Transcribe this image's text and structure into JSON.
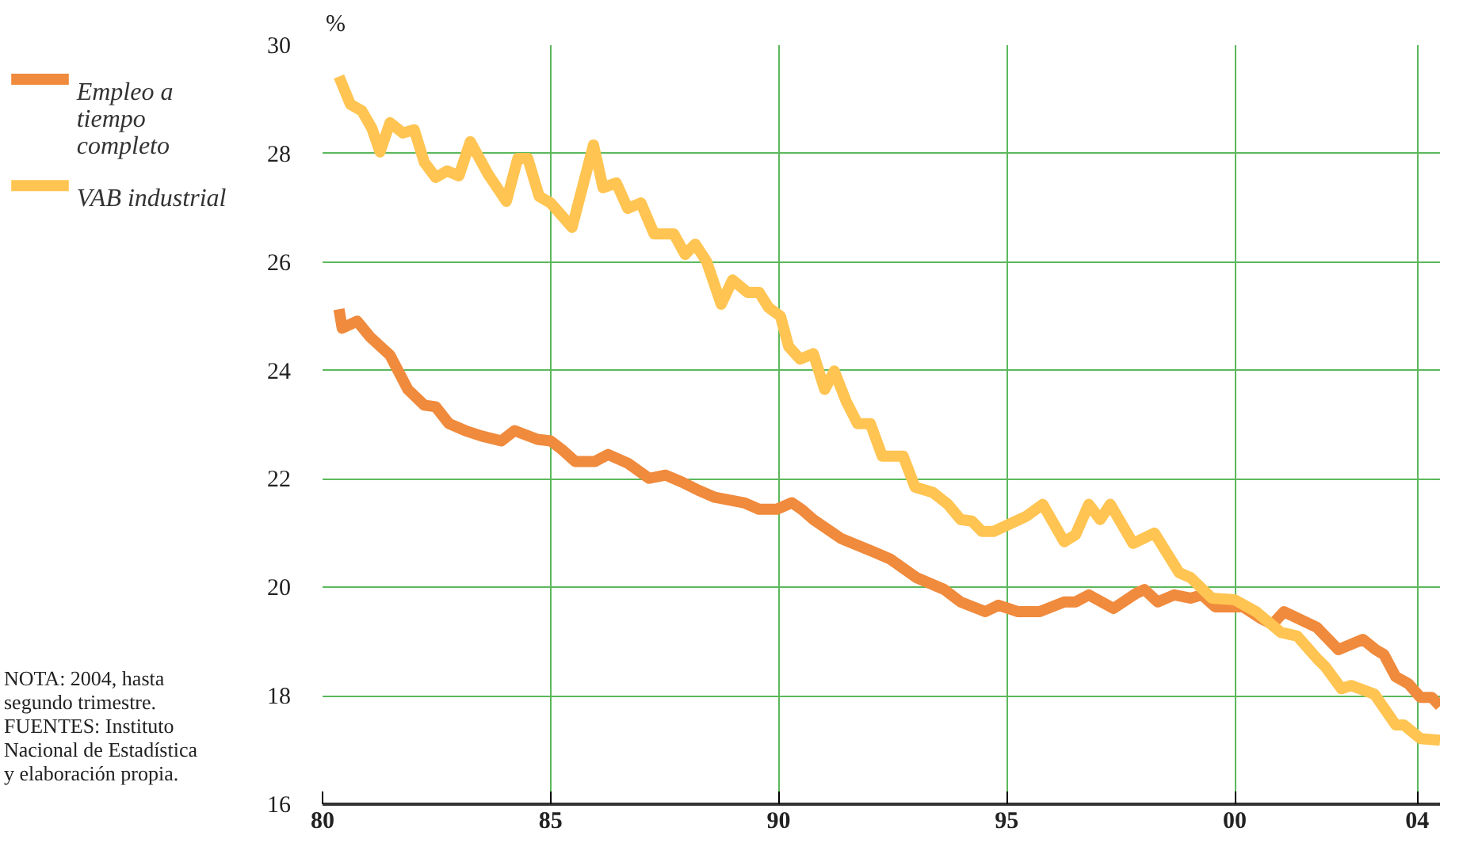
{
  "chart_data": {
    "type": "line",
    "ylabel": "%",
    "legend": "top left",
    "grid": true,
    "line_style": "solid",
    "xlim": [
      1980,
      2004.5
    ],
    "ylim": [
      16,
      30
    ],
    "xticks": [
      {
        "value": 1980,
        "label": "80"
      },
      {
        "value": 1985,
        "label": "85"
      },
      {
        "value": 1990,
        "label": "90"
      },
      {
        "value": 1995,
        "label": "95"
      },
      {
        "value": 2000,
        "label": "00"
      },
      {
        "value": 2004,
        "label": "04"
      }
    ],
    "yticks": [
      16,
      18,
      20,
      22,
      24,
      26,
      28,
      30
    ],
    "annotations": [
      "NOTA: 2004, hasta\nsegundo trimestre.\nFUENTES: Instituto\nNacional de Estadística\ny elaboración propia."
    ],
    "series": [
      {
        "name": "Empleo a tiempo completo",
        "color": "#f08a3c",
        "x": [
          1980.36,
          1980.43,
          1980.76,
          1981.04,
          1981.48,
          1981.87,
          1982.23,
          1982.48,
          1982.77,
          1983.13,
          1983.49,
          1983.92,
          1984.21,
          1984.71,
          1985.0,
          1985.25,
          1985.54,
          1985.97,
          1986.26,
          1986.69,
          1987.16,
          1987.52,
          1987.88,
          1988.24,
          1988.6,
          1989.24,
          1989.57,
          1989.96,
          1990.29,
          1990.5,
          1990.76,
          1991.04,
          1991.37,
          1992.09,
          1992.45,
          1993.02,
          1993.63,
          1993.99,
          1994.53,
          1994.82,
          1995.25,
          1995.72,
          1996.26,
          1996.51,
          1996.8,
          1997.34,
          1997.84,
          1998.02,
          1998.31,
          1998.67,
          1999.03,
          1999.28,
          1999.57,
          2000.18,
          2000.58,
          2000.83,
          2001.08,
          2001.8,
          2002.27,
          2002.81,
          2003.09,
          2003.27,
          2003.53,
          2003.81,
          2004.07,
          2004.32,
          2004.5
        ],
        "values": [
          25.13,
          24.78,
          24.91,
          24.62,
          24.28,
          23.65,
          23.36,
          23.33,
          23.02,
          22.89,
          22.79,
          22.7,
          22.89,
          22.73,
          22.7,
          22.54,
          22.32,
          22.32,
          22.45,
          22.29,
          22.01,
          22.07,
          21.94,
          21.79,
          21.66,
          21.56,
          21.44,
          21.44,
          21.56,
          21.44,
          21.25,
          21.09,
          20.9,
          20.65,
          20.52,
          20.18,
          19.96,
          19.73,
          19.55,
          19.67,
          19.55,
          19.55,
          19.73,
          19.73,
          19.86,
          19.61,
          19.89,
          19.96,
          19.73,
          19.86,
          19.8,
          19.86,
          19.64,
          19.64,
          19.42,
          19.32,
          19.55,
          19.26,
          18.85,
          19.04,
          18.85,
          18.76,
          18.35,
          18.22,
          17.97,
          17.97,
          17.81
        ]
      },
      {
        "name": "VAB industrial",
        "color": "#ffc451",
        "x": [
          1980.36,
          1980.61,
          1980.86,
          1981.08,
          1981.26,
          1981.48,
          1981.76,
          1982.01,
          1982.23,
          1982.48,
          1982.73,
          1982.99,
          1983.24,
          1983.63,
          1984.03,
          1984.28,
          1984.5,
          1984.75,
          1985.0,
          1985.47,
          1985.94,
          1986.15,
          1986.44,
          1986.69,
          1986.98,
          1987.27,
          1987.7,
          1987.95,
          1988.17,
          1988.42,
          1988.74,
          1988.99,
          1989.32,
          1989.57,
          1989.78,
          1990.04,
          1990.22,
          1990.47,
          1990.76,
          1991.01,
          1991.22,
          1991.48,
          1991.73,
          1992.01,
          1992.27,
          1992.73,
          1992.99,
          1993.38,
          1993.71,
          1993.99,
          1994.24,
          1994.46,
          1994.71,
          1995.43,
          1995.79,
          1996.26,
          1996.51,
          1996.8,
          1997.05,
          1997.27,
          1997.77,
          1998.24,
          1998.78,
          1999.03,
          1999.5,
          2000.0,
          2000.47,
          2001.01,
          2001.37,
          2001.8,
          2001.98,
          2002.34,
          2002.55,
          2003.06,
          2003.53,
          2003.71,
          2004.07,
          2004.5
        ],
        "values": [
          29.42,
          28.91,
          28.79,
          28.47,
          28.03,
          28.57,
          28.38,
          28.44,
          27.84,
          27.56,
          27.68,
          27.59,
          28.22,
          27.62,
          27.12,
          27.91,
          27.91,
          27.21,
          27.09,
          26.64,
          28.16,
          27.37,
          27.46,
          26.99,
          27.09,
          26.52,
          26.52,
          26.14,
          26.33,
          26.01,
          25.22,
          25.67,
          25.44,
          25.44,
          25.16,
          25.0,
          24.44,
          24.21,
          24.31,
          23.65,
          23.99,
          23.43,
          23.02,
          23.02,
          22.42,
          22.42,
          21.85,
          21.75,
          21.53,
          21.25,
          21.22,
          21.03,
          21.03,
          21.31,
          21.53,
          20.84,
          20.97,
          21.53,
          21.25,
          21.53,
          20.81,
          21.0,
          20.27,
          20.18,
          19.8,
          19.77,
          19.55,
          19.17,
          19.1,
          18.69,
          18.54,
          18.13,
          18.19,
          18.03,
          17.46,
          17.46,
          17.21,
          17.18
        ]
      }
    ]
  }
}
